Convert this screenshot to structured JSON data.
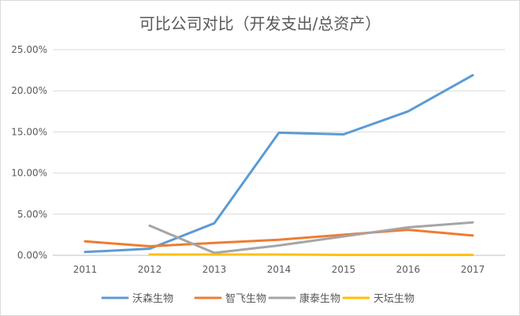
{
  "chart_data": {
    "type": "line",
    "title": "可比公司对比（开发支出/总资产）",
    "xlabel": "",
    "ylabel": "",
    "categories": [
      "2011",
      "2012",
      "2013",
      "2014",
      "2015",
      "2016",
      "2017"
    ],
    "y_tick_labels": [
      "0.00%",
      "5.00%",
      "10.00%",
      "15.00%",
      "20.00%",
      "25.00%"
    ],
    "y_ticks": [
      0,
      5,
      10,
      15,
      20,
      25
    ],
    "ylim": [
      0,
      25
    ],
    "grid": true,
    "legend_position": "bottom",
    "series": [
      {
        "name": "沃森生物",
        "color": "#5B9BD5",
        "values": [
          0.4,
          0.8,
          3.9,
          14.9,
          14.7,
          17.5,
          21.9
        ]
      },
      {
        "name": "智飞生物",
        "color": "#ED7D31",
        "values": [
          1.7,
          1.1,
          1.5,
          1.9,
          2.5,
          3.1,
          2.4
        ]
      },
      {
        "name": "康泰生物",
        "color": "#A5A5A5",
        "values": [
          null,
          3.6,
          0.3,
          1.2,
          2.3,
          3.4,
          4.0
        ]
      },
      {
        "name": "天坛生物",
        "color": "#FFC000",
        "values": [
          null,
          0.1,
          0.1,
          0.1,
          0.05,
          0.05,
          0.05
        ]
      }
    ]
  }
}
